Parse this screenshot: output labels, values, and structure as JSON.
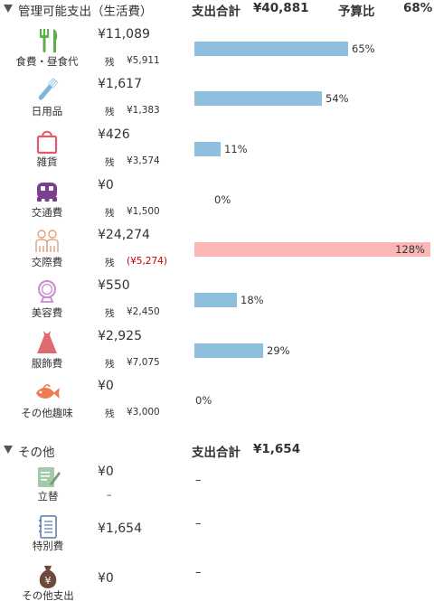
{
  "section1": {
    "title": "管理可能支出（生活費）",
    "total_label": "支出合計",
    "total_value": "¥40,881",
    "budget_label": "予算比",
    "budget_value": "68%",
    "colors": {
      "bar": "#8fbfdf",
      "bar_over": "#fbb6b6",
      "negative": "#cc0000"
    },
    "remain_key": "残",
    "items": [
      {
        "icon": "utensils-icon",
        "label": "食費・昼食代",
        "amount": "¥11,089",
        "remain": "¥5,911",
        "negative": false,
        "percent": 65,
        "percent_label": "65%"
      },
      {
        "icon": "toothbrush-icon",
        "label": "日用品",
        "amount": "¥1,617",
        "remain": "¥1,383",
        "negative": false,
        "percent": 54,
        "percent_label": "54%"
      },
      {
        "icon": "shopping-bag-icon",
        "label": "雑貨",
        "amount": "¥426",
        "remain": "¥3,574",
        "negative": false,
        "percent": 11,
        "percent_label": "11%"
      },
      {
        "icon": "bus-icon",
        "label": "交通費",
        "amount": "¥0",
        "remain": "¥1,500",
        "negative": false,
        "percent": 0,
        "percent_label": "0%"
      },
      {
        "icon": "people-icon",
        "label": "交際費",
        "amount": "¥24,274",
        "remain": "(¥5,274)",
        "negative": true,
        "percent": 128,
        "percent_label": "128%"
      },
      {
        "icon": "mirror-icon",
        "label": "美容費",
        "amount": "¥550",
        "remain": "¥2,450",
        "negative": false,
        "percent": 18,
        "percent_label": "18%"
      },
      {
        "icon": "dress-icon",
        "label": "服飾費",
        "amount": "¥2,925",
        "remain": "¥7,075",
        "negative": false,
        "percent": 29,
        "percent_label": "29%"
      },
      {
        "icon": "fish-icon",
        "label": "その他趣味",
        "amount": "¥0",
        "remain": "¥3,000",
        "negative": false,
        "percent": 0,
        "percent_label": "0%"
      }
    ]
  },
  "section2": {
    "title": "その他",
    "total_label": "支出合計",
    "total_value": "¥1,654",
    "items": [
      {
        "icon": "memo-pen-icon",
        "label": "立替",
        "amount": "¥0",
        "sub": "–",
        "dash": "–"
      },
      {
        "icon": "notebook-icon",
        "label": "特別費",
        "amount": "¥1,654",
        "sub": "",
        "dash": "–"
      },
      {
        "icon": "money-bag-icon",
        "label": "その他支出",
        "amount": "¥0",
        "sub": "",
        "dash": "–"
      }
    ]
  }
}
